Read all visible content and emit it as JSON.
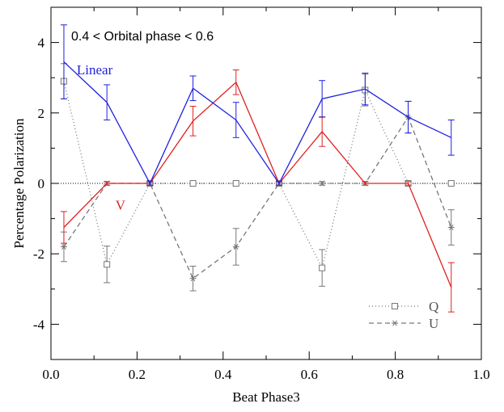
{
  "chart_data": {
    "type": "line",
    "title": "",
    "annotation": "0.4 < Orbital phase < 0.6",
    "xlabel": "Beat Phase3",
    "ylabel": "Percentage Polarization",
    "xlim": [
      0.0,
      1.0
    ],
    "ylim": [
      -5,
      5
    ],
    "x_ticks": [
      "0.0",
      "0.2",
      "0.4",
      "0.6",
      "0.8",
      "1.0"
    ],
    "x_tick_values": [
      0.0,
      0.2,
      0.4,
      0.6,
      0.8,
      1.0
    ],
    "y_ticks": [
      "4",
      "2",
      "0",
      "-2",
      "-4"
    ],
    "y_tick_values": [
      4,
      2,
      0,
      -2,
      -4
    ],
    "zero_line": true,
    "legend_position": "bottom-right",
    "series": [
      {
        "name": "Linear",
        "color": "#2020dd",
        "line_style": "solid",
        "marker": "none",
        "x": [
          0.03,
          0.13,
          0.23,
          0.33,
          0.43,
          0.53,
          0.63,
          0.73,
          0.83,
          0.93
        ],
        "y": [
          3.45,
          2.3,
          0.0,
          2.7,
          1.8,
          0.0,
          2.4,
          2.68,
          1.88,
          1.3
        ],
        "err": [
          1.05,
          0.5,
          0.05,
          0.35,
          0.5,
          0.05,
          0.52,
          0.45,
          0.45,
          0.5
        ]
      },
      {
        "name": "V",
        "color": "#e02020",
        "line_style": "solid",
        "marker": "none",
        "x": [
          0.03,
          0.13,
          0.23,
          0.33,
          0.43,
          0.53,
          0.63,
          0.73,
          0.83,
          0.93
        ],
        "y": [
          -1.25,
          0.0,
          0.0,
          1.77,
          2.87,
          0.0,
          1.47,
          0.0,
          0.0,
          -2.95
        ],
        "err": [
          0.45,
          0.05,
          0.05,
          0.42,
          0.35,
          0.05,
          0.42,
          0.05,
          0.05,
          0.7
        ]
      },
      {
        "name": "Q",
        "color": "#777777",
        "line_style": "dotted",
        "marker": "square",
        "x": [
          0.03,
          0.13,
          0.23,
          0.33,
          0.43,
          0.53,
          0.63,
          0.73,
          0.83,
          0.93
        ],
        "y": [
          2.9,
          -2.3,
          0.0,
          0.0,
          0.0,
          0.0,
          -2.4,
          2.65,
          0.0,
          0.0
        ],
        "err": [
          0.5,
          0.52,
          0.05,
          0.05,
          0.05,
          0.05,
          0.52,
          0.45,
          0.05,
          0.05
        ]
      },
      {
        "name": "U",
        "color": "#777777",
        "line_style": "dashed",
        "marker": "asterisk",
        "x": [
          0.03,
          0.13,
          0.23,
          0.33,
          0.43,
          0.53,
          0.63,
          0.73,
          0.83,
          0.93
        ],
        "y": [
          -1.8,
          0.0,
          0.0,
          -2.7,
          -1.8,
          0.0,
          0.0,
          0.0,
          1.88,
          -1.25
        ],
        "err": [
          0.42,
          0.05,
          0.05,
          0.35,
          0.52,
          0.05,
          0.05,
          0.05,
          0.45,
          0.5
        ]
      }
    ],
    "series_labels": [
      {
        "text": "Linear",
        "color": "#2020dd",
        "x": 0.06,
        "y": 3.1
      },
      {
        "text": "V",
        "color": "#e02020",
        "x": 0.15,
        "y": -0.75
      }
    ],
    "legend": [
      {
        "label": "Q",
        "series": "Q"
      },
      {
        "label": "U",
        "series": "U"
      }
    ]
  }
}
